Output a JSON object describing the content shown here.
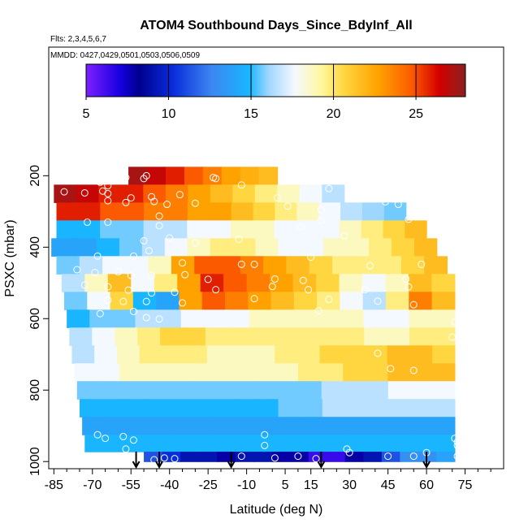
{
  "chart_data": {
    "type": "heatmap",
    "title": "ATOM4 Southbound Days_Since_BdyInf_All",
    "flights_note": "Flts: 2,3,4,5,6,7",
    "dates_note": "MMDD: 0427,0429,0501,0503,0506,0509",
    "xlabel": "Latitude (deg N)",
    "ylabel": "PSXC (mbar)",
    "xlim": [
      -87,
      90
    ],
    "ylim": [
      1020,
      -160
    ],
    "x_ticks": [
      -85,
      -70,
      -55,
      -40,
      -25,
      -10,
      5,
      15,
      30,
      45,
      60,
      75
    ],
    "x_tick_labels": [
      "-85",
      "-70",
      "-55",
      "-40",
      "-25",
      "-10",
      "5",
      "15",
      "30",
      "45",
      "60",
      "75"
    ],
    "y_ticks": [
      200,
      400,
      600,
      800,
      1000
    ],
    "y_tick_labels": [
      "200",
      "400",
      "600",
      "800",
      "1000"
    ],
    "colorbar": {
      "range": [
        5,
        28
      ],
      "ticks": [
        5,
        10,
        15,
        20,
        25
      ],
      "tick_labels": [
        "5",
        "10",
        "15",
        "20",
        "25"
      ]
    },
    "layers": [
      {
        "p": 200,
        "lat_min": -56,
        "lat_max": 2,
        "values": [
          27,
          26,
          25,
          24,
          23,
          22,
          21.5,
          21
        ]
      },
      {
        "p": 250,
        "lat_min": -85,
        "lat_max": 28,
        "values": [
          27,
          26,
          25,
          25,
          24,
          23,
          22,
          21,
          20,
          19,
          18,
          17,
          16
        ]
      },
      {
        "p": 300,
        "lat_min": -84,
        "lat_max": 52,
        "values": [
          25,
          25,
          24,
          24,
          23,
          23,
          22,
          22,
          21,
          20,
          19,
          18,
          17,
          16,
          15.5,
          15
        ]
      },
      {
        "p": 350,
        "lat_min": -84,
        "lat_max": 60,
        "values": [
          14,
          14,
          15,
          15,
          16,
          16,
          17,
          17,
          18,
          18,
          17,
          17,
          17,
          18,
          19,
          20,
          21
        ]
      },
      {
        "p": 400,
        "lat_min": -86,
        "lat_max": 64,
        "values": [
          13,
          13,
          14,
          15,
          16,
          17,
          18,
          19,
          19,
          18,
          17,
          17,
          18,
          18,
          19,
          20,
          21
        ]
      },
      {
        "p": 450,
        "lat_min": -84,
        "lat_max": 68,
        "values": [
          15,
          16,
          17,
          17,
          18,
          22,
          24,
          24,
          23,
          22,
          21,
          20,
          19,
          19,
          19,
          20,
          21
        ]
      },
      {
        "p": 500,
        "lat_min": -82,
        "lat_max": 71,
        "values": [
          16,
          18,
          21,
          17,
          19,
          22,
          25,
          24,
          23,
          22,
          21,
          20,
          18,
          17,
          18,
          21,
          20
        ]
      },
      {
        "p": 550,
        "lat_min": -81,
        "lat_max": 71,
        "values": [
          15,
          17,
          20,
          14,
          13,
          22,
          24,
          23,
          22,
          21,
          20,
          19,
          17,
          16,
          19,
          23,
          21
        ]
      },
      {
        "p": 600,
        "lat_min": -80,
        "lat_max": 71,
        "values": [
          14,
          15,
          15,
          16,
          16,
          17,
          17,
          17,
          18,
          18,
          18,
          18,
          18,
          17,
          17,
          18,
          18
        ]
      },
      {
        "p": 650,
        "lat_min": -79,
        "lat_max": 71,
        "values": [
          16,
          17,
          18,
          19,
          20,
          20,
          19,
          19,
          19,
          19,
          19,
          19,
          19,
          18,
          18,
          19,
          19
        ]
      },
      {
        "p": 700,
        "lat_min": -78,
        "lat_max": 71,
        "values": [
          16,
          17,
          18,
          19,
          19,
          19,
          18,
          18,
          18,
          19,
          19,
          20,
          20,
          20,
          21,
          21,
          20
        ]
      },
      {
        "p": 750,
        "lat_min": -77,
        "lat_max": 71,
        "values": [
          17,
          17,
          18,
          18,
          18,
          18,
          18,
          18,
          18,
          18,
          19,
          19,
          20,
          20,
          21,
          21,
          21
        ]
      },
      {
        "p": 800,
        "lat_min": -76,
        "lat_max": 71,
        "values": [
          15,
          15,
          15,
          15,
          15,
          15,
          15,
          15,
          15,
          15,
          15,
          16,
          16,
          16,
          17,
          17,
          17
        ]
      },
      {
        "p": 850,
        "lat_min": -75,
        "lat_max": 71,
        "values": [
          14,
          14,
          14,
          14,
          14,
          14,
          14,
          14,
          14,
          15,
          15,
          16,
          16,
          16,
          16,
          16,
          16
        ]
      },
      {
        "p": 900,
        "lat_min": -74,
        "lat_max": 71,
        "values": [
          13,
          13,
          13,
          13,
          13,
          13,
          13,
          13,
          13,
          13,
          13,
          13,
          13,
          13,
          13,
          13,
          13
        ]
      },
      {
        "p": 950,
        "lat_min": -73,
        "lat_max": 71,
        "values": [
          14,
          14,
          14,
          14,
          14,
          14,
          14,
          14,
          14,
          14,
          14,
          14,
          14,
          14,
          14,
          14,
          14
        ]
      },
      {
        "p": 995,
        "lat_min": -50,
        "lat_max": 71,
        "values": [
          10,
          9,
          8,
          8,
          7,
          8,
          8,
          7,
          7,
          6,
          6,
          7,
          8,
          10,
          12,
          12,
          13
        ]
      }
    ],
    "sample_points": [
      {
        "lat": -57,
        "p": 205
      },
      {
        "lat": -67,
        "p": 218
      },
      {
        "lat": -64,
        "p": 228
      },
      {
        "lat": -49,
        "p": 200
      },
      {
        "lat": -50,
        "p": 208
      },
      {
        "lat": -22,
        "p": 208
      },
      {
        "lat": -23,
        "p": 205
      },
      {
        "lat": -12,
        "p": 226
      },
      {
        "lat": -81,
        "p": 245
      },
      {
        "lat": -73,
        "p": 248
      },
      {
        "lat": -66,
        "p": 243
      },
      {
        "lat": -64,
        "p": 250
      },
      {
        "lat": -55,
        "p": 262
      },
      {
        "lat": -47,
        "p": 259
      },
      {
        "lat": -36,
        "p": 253
      },
      {
        "lat": 2,
        "p": 262
      },
      {
        "lat": 22,
        "p": 236
      },
      {
        "lat": -64,
        "p": 270
      },
      {
        "lat": -57,
        "p": 275
      },
      {
        "lat": -46,
        "p": 272
      },
      {
        "lat": -41,
        "p": 280
      },
      {
        "lat": -30,
        "p": 277
      },
      {
        "lat": 6,
        "p": 285
      },
      {
        "lat": 19,
        "p": 296
      },
      {
        "lat": 40,
        "p": 262
      },
      {
        "lat": 44,
        "p": 273
      },
      {
        "lat": 49,
        "p": 280
      },
      {
        "lat": -72,
        "p": 330
      },
      {
        "lat": -64,
        "p": 330
      },
      {
        "lat": -44,
        "p": 313
      },
      {
        "lat": -44,
        "p": 340
      },
      {
        "lat": 11,
        "p": 344
      },
      {
        "lat": 19,
        "p": 326
      },
      {
        "lat": 53,
        "p": 322
      },
      {
        "lat": -50,
        "p": 382
      },
      {
        "lat": -40,
        "p": 374
      },
      {
        "lat": -30,
        "p": 388
      },
      {
        "lat": -13,
        "p": 378
      },
      {
        "lat": 28,
        "p": 368
      },
      {
        "lat": -68,
        "p": 425
      },
      {
        "lat": -54,
        "p": 425
      },
      {
        "lat": -48,
        "p": 410
      },
      {
        "lat": -35,
        "p": 444
      },
      {
        "lat": -12,
        "p": 448
      },
      {
        "lat": -7,
        "p": 448
      },
      {
        "lat": 15,
        "p": 428
      },
      {
        "lat": 38,
        "p": 452
      },
      {
        "lat": 58,
        "p": 448
      },
      {
        "lat": -76,
        "p": 463
      },
      {
        "lat": -69,
        "p": 471
      },
      {
        "lat": -60,
        "p": 469
      },
      {
        "lat": -55,
        "p": 479
      },
      {
        "lat": -47,
        "p": 479
      },
      {
        "lat": -34,
        "p": 477
      },
      {
        "lat": -25,
        "p": 490
      },
      {
        "lat": 1,
        "p": 489
      },
      {
        "lat": 12,
        "p": 493
      },
      {
        "lat": 52,
        "p": 489
      },
      {
        "lat": -73,
        "p": 506
      },
      {
        "lat": -64,
        "p": 511
      },
      {
        "lat": -56,
        "p": 520
      },
      {
        "lat": -47,
        "p": 528
      },
      {
        "lat": -38,
        "p": 526
      },
      {
        "lat": -22,
        "p": 519
      },
      {
        "lat": 0,
        "p": 510
      },
      {
        "lat": 14,
        "p": 519
      },
      {
        "lat": 36,
        "p": 519
      },
      {
        "lat": 53,
        "p": 511
      },
      {
        "lat": -64,
        "p": 548
      },
      {
        "lat": -58,
        "p": 552
      },
      {
        "lat": -49,
        "p": 552
      },
      {
        "lat": -35,
        "p": 556
      },
      {
        "lat": -7,
        "p": 544
      },
      {
        "lat": 22,
        "p": 546
      },
      {
        "lat": 41,
        "p": 551
      },
      {
        "lat": 55,
        "p": 561
      },
      {
        "lat": -67,
        "p": 586
      },
      {
        "lat": -54,
        "p": 580
      },
      {
        "lat": -49,
        "p": 597
      },
      {
        "lat": -44,
        "p": 601
      },
      {
        "lat": 18,
        "p": 578
      },
      {
        "lat": 71,
        "p": 609
      },
      {
        "lat": 41,
        "p": 697
      },
      {
        "lat": 70,
        "p": 652
      },
      {
        "lat": 46,
        "p": 740
      },
      {
        "lat": 55,
        "p": 745
      },
      {
        "lat": -68,
        "p": 925
      },
      {
        "lat": -65,
        "p": 935
      },
      {
        "lat": -58,
        "p": 930
      },
      {
        "lat": -54,
        "p": 940
      },
      {
        "lat": -57,
        "p": 965
      },
      {
        "lat": -58,
        "p": 985
      },
      {
        "lat": -46,
        "p": 995
      },
      {
        "lat": -42,
        "p": 990
      },
      {
        "lat": -38,
        "p": 992
      },
      {
        "lat": -3,
        "p": 925
      },
      {
        "lat": -3,
        "p": 955
      },
      {
        "lat": -12,
        "p": 985
      },
      {
        "lat": 1,
        "p": 990
      },
      {
        "lat": 10,
        "p": 985
      },
      {
        "lat": 17,
        "p": 992
      },
      {
        "lat": 29,
        "p": 965
      },
      {
        "lat": 30,
        "p": 975
      },
      {
        "lat": 45,
        "p": 985
      },
      {
        "lat": 55,
        "p": 985
      },
      {
        "lat": 60,
        "p": 975
      },
      {
        "lat": 71,
        "p": 935
      },
      {
        "lat": 72,
        "p": 945
      },
      {
        "lat": 72,
        "p": 955
      },
      {
        "lat": 72,
        "p": 985
      }
    ],
    "arrow_latitudes": [
      -53,
      -44,
      -16,
      19,
      60
    ]
  }
}
